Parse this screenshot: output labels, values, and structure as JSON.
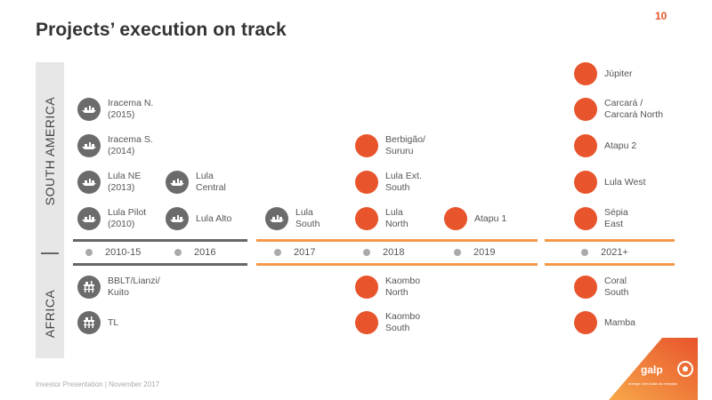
{
  "page_number": "10",
  "title": "Projects’ execution on track",
  "regions": {
    "south_america": "SOUTH AMERICA",
    "africa": "AFRICA"
  },
  "timeline": {
    "years": [
      "2010-15",
      "2016",
      "2017",
      "2018",
      "2019",
      "2021+"
    ]
  },
  "south_america": {
    "y2010_15": [
      "Iracema N.\n(2015)",
      "Iracema S.\n(2014)",
      "Lula NE\n(2013)",
      "Lula Pilot\n(2010)"
    ],
    "y2016": [
      "Lula\nCentral",
      "Lula Alto"
    ],
    "y2017": [
      "Lula\nSouth"
    ],
    "y2018": [
      "Berbigão/\nSururu",
      "Lula Ext.\nSouth",
      "Lula\nNorth"
    ],
    "y2019": [
      "Atapu 1"
    ],
    "y2021": [
      "Júpiter",
      "Carcará /\nCarcará North",
      "Atapu 2",
      "Lula West",
      "Sépia\nEast"
    ]
  },
  "africa": {
    "y2010_15": [
      "BBLT/Lianzi/\nKuito",
      "TL"
    ],
    "y2018": [
      "Kaombo\nNorth",
      "Kaombo\nSouth"
    ],
    "y2021": [
      "Coral\nSouth",
      "Mamba"
    ]
  },
  "footer": "Investor Presentation | November 2017",
  "logo": {
    "name": "galp",
    "tagline": "energia com todas as energias"
  },
  "colors": {
    "accent": "#e8542b",
    "grey_icon": "#6b6b6b",
    "timeline_orange": "#f29a4a"
  }
}
